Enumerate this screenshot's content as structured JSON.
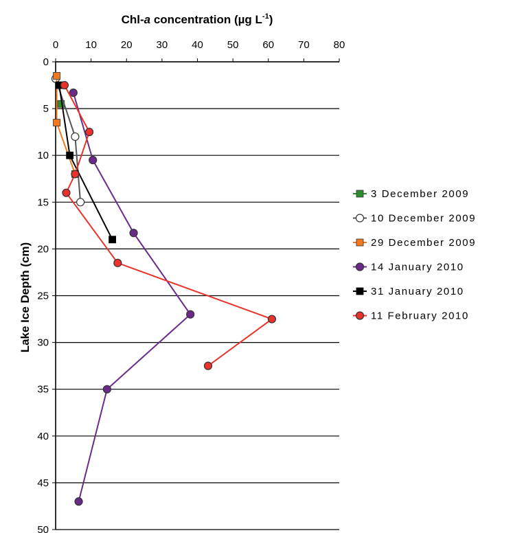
{
  "chart_data": {
    "type": "line",
    "orientation": "depth-profile (x on top, y increasing downward)",
    "title": "",
    "xlabel": {
      "prefix": "Chl-",
      "italic": "a",
      "middle": " concentration (µg  L",
      "superscript": "-1",
      "suffix": ")"
    },
    "ylabel": "Lake Ice Depth (cm)",
    "xlim": [
      0,
      80
    ],
    "ylim": [
      0,
      50
    ],
    "x_ticks": [
      "0",
      "10",
      "20",
      "30",
      "40",
      "50",
      "60",
      "70",
      "80"
    ],
    "y_ticks": [
      "0",
      "5",
      "10",
      "15",
      "20",
      "25",
      "30",
      "35",
      "40",
      "45",
      "50"
    ],
    "grid": "horizontal lines at every y tick",
    "legend_position": "right",
    "series": [
      {
        "name": "3 December 2009",
        "color": "#2e8b2e",
        "marker": "square",
        "points": [
          [
            1.5,
            4.5
          ]
        ]
      },
      {
        "name": "10 December 2009",
        "color": "#555555",
        "marker_fill": "#ffffff",
        "marker": "circle",
        "points": [
          [
            0,
            1.8
          ],
          [
            5.5,
            8.0
          ],
          [
            7.0,
            15.0
          ]
        ]
      },
      {
        "name": "29 December 2009",
        "color": "#f07820",
        "marker": "square",
        "points": [
          [
            0.3,
            1.5
          ],
          [
            0.3,
            6.5
          ],
          [
            5.5,
            12.0
          ]
        ]
      },
      {
        "name": "14 January 2010",
        "color": "#6a2a8a",
        "marker_fill": "#6a2a8a",
        "marker": "circle",
        "points": [
          [
            5.0,
            3.3
          ],
          [
            10.5,
            10.5
          ],
          [
            22.0,
            18.3
          ],
          [
            38.0,
            27.0
          ],
          [
            14.5,
            35.0
          ],
          [
            6.5,
            47.0
          ]
        ]
      },
      {
        "name": "31 January 2010",
        "color": "#000000",
        "marker": "square",
        "points": [
          [
            1.0,
            2.5
          ],
          [
            4.0,
            10.0
          ],
          [
            16.0,
            19.0
          ]
        ]
      },
      {
        "name": "11 February 2010",
        "color": "#e8322a",
        "marker_fill": "#e8322a",
        "marker": "circle",
        "points": [
          [
            2.5,
            2.5
          ],
          [
            9.5,
            7.5
          ],
          [
            5.5,
            12.0
          ],
          [
            3.0,
            14.0
          ],
          [
            17.5,
            21.5
          ],
          [
            61.0,
            27.5
          ],
          [
            43.0,
            32.5
          ]
        ]
      }
    ]
  }
}
